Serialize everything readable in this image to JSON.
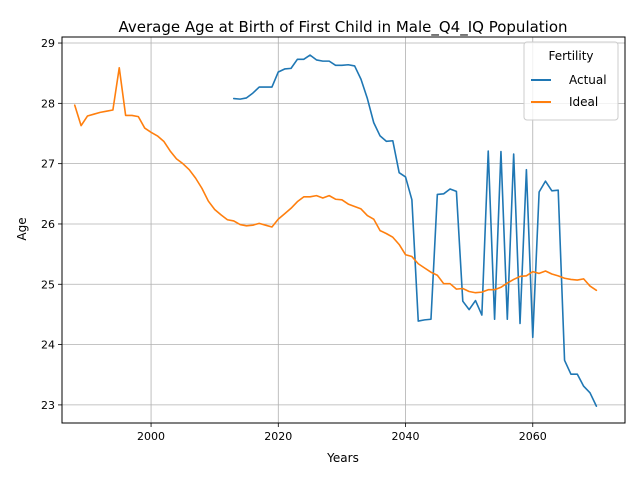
{
  "chart_data": {
    "type": "line",
    "title": "Average Age at Birth of First Child in Male_Q4_IQ Population",
    "xlabel": "Years",
    "ylabel": "Age",
    "xlim": [
      1986,
      2074.5
    ],
    "ylim": [
      22.7,
      29.1
    ],
    "xticks": [
      2000,
      2020,
      2040,
      2060
    ],
    "yticks": [
      23,
      24,
      25,
      26,
      27,
      28,
      29
    ],
    "grid": true,
    "legend": {
      "title": "Fertility",
      "position": "top-right"
    },
    "series": [
      {
        "name": "Actual",
        "color": "#1f77b4",
        "points": [
          [
            2013,
            28.08
          ],
          [
            2014,
            28.07
          ],
          [
            2015,
            28.09
          ],
          [
            2016,
            28.17
          ],
          [
            2017,
            28.27
          ],
          [
            2018,
            28.27
          ],
          [
            2019,
            28.27
          ],
          [
            2020,
            28.52
          ],
          [
            2021,
            28.57
          ],
          [
            2022,
            28.58
          ],
          [
            2023,
            28.73
          ],
          [
            2024,
            28.73
          ],
          [
            2025,
            28.8
          ],
          [
            2026,
            28.72
          ],
          [
            2027,
            28.7
          ],
          [
            2028,
            28.7
          ],
          [
            2029,
            28.63
          ],
          [
            2030,
            28.63
          ],
          [
            2031,
            28.64
          ],
          [
            2032,
            28.62
          ],
          [
            2033,
            28.4
          ],
          [
            2034,
            28.08
          ],
          [
            2035,
            27.68
          ],
          [
            2036,
            27.46
          ],
          [
            2037,
            27.37
          ],
          [
            2038,
            27.38
          ],
          [
            2039,
            26.85
          ],
          [
            2040,
            26.78
          ],
          [
            2041,
            26.4
          ],
          [
            2042,
            24.39
          ],
          [
            2043,
            24.41
          ],
          [
            2044,
            24.42
          ],
          [
            2045,
            26.49
          ],
          [
            2046,
            26.5
          ],
          [
            2047,
            26.58
          ],
          [
            2048,
            26.54
          ],
          [
            2049,
            24.72
          ],
          [
            2050,
            24.58
          ],
          [
            2051,
            24.73
          ],
          [
            2052,
            24.49
          ],
          [
            2053,
            27.21
          ],
          [
            2054,
            24.42
          ],
          [
            2055,
            27.2
          ],
          [
            2056,
            24.42
          ],
          [
            2057,
            27.16
          ],
          [
            2058,
            24.35
          ],
          [
            2059,
            26.9
          ],
          [
            2060,
            24.12
          ],
          [
            2061,
            26.53
          ],
          [
            2062,
            26.71
          ],
          [
            2063,
            26.55
          ],
          [
            2064,
            26.56
          ],
          [
            2065,
            23.74
          ],
          [
            2066,
            23.51
          ],
          [
            2067,
            23.51
          ],
          [
            2068,
            23.31
          ],
          [
            2069,
            23.2
          ],
          [
            2070,
            22.98
          ]
        ]
      },
      {
        "name": "Ideal",
        "color": "#ff7f0e",
        "points": [
          [
            1988,
            27.97
          ],
          [
            1989,
            27.63
          ],
          [
            1990,
            27.79
          ],
          [
            1991,
            27.82
          ],
          [
            1992,
            27.85
          ],
          [
            1993,
            27.87
          ],
          [
            1994,
            27.89
          ],
          [
            1995,
            28.59
          ],
          [
            1996,
            27.8
          ],
          [
            1997,
            27.8
          ],
          [
            1998,
            27.78
          ],
          [
            1999,
            27.59
          ],
          [
            2000,
            27.52
          ],
          [
            2001,
            27.46
          ],
          [
            2002,
            27.37
          ],
          [
            2003,
            27.21
          ],
          [
            2004,
            27.08
          ],
          [
            2005,
            27.0
          ],
          [
            2006,
            26.9
          ],
          [
            2007,
            26.76
          ],
          [
            2008,
            26.59
          ],
          [
            2009,
            26.38
          ],
          [
            2010,
            26.24
          ],
          [
            2011,
            26.15
          ],
          [
            2012,
            26.07
          ],
          [
            2013,
            26.05
          ],
          [
            2014,
            25.99
          ],
          [
            2015,
            25.97
          ],
          [
            2016,
            25.98
          ],
          [
            2017,
            26.01
          ],
          [
            2018,
            25.98
          ],
          [
            2019,
            25.95
          ],
          [
            2020,
            26.08
          ],
          [
            2021,
            26.17
          ],
          [
            2022,
            26.26
          ],
          [
            2023,
            26.37
          ],
          [
            2024,
            26.45
          ],
          [
            2025,
            26.45
          ],
          [
            2026,
            26.47
          ],
          [
            2027,
            26.43
          ],
          [
            2028,
            26.47
          ],
          [
            2029,
            26.41
          ],
          [
            2030,
            26.4
          ],
          [
            2031,
            26.33
          ],
          [
            2032,
            26.29
          ],
          [
            2033,
            26.25
          ],
          [
            2034,
            26.14
          ],
          [
            2035,
            26.08
          ],
          [
            2036,
            25.89
          ],
          [
            2037,
            25.84
          ],
          [
            2038,
            25.78
          ],
          [
            2039,
            25.66
          ],
          [
            2040,
            25.49
          ],
          [
            2041,
            25.46
          ],
          [
            2042,
            25.34
          ],
          [
            2043,
            25.27
          ],
          [
            2044,
            25.2
          ],
          [
            2045,
            25.15
          ],
          [
            2046,
            25.01
          ],
          [
            2047,
            25.01
          ],
          [
            2048,
            24.92
          ],
          [
            2049,
            24.93
          ],
          [
            2050,
            24.88
          ],
          [
            2051,
            24.86
          ],
          [
            2052,
            24.87
          ],
          [
            2053,
            24.91
          ],
          [
            2054,
            24.91
          ],
          [
            2055,
            24.95
          ],
          [
            2056,
            25.02
          ],
          [
            2057,
            25.08
          ],
          [
            2058,
            25.13
          ],
          [
            2059,
            25.14
          ],
          [
            2060,
            25.21
          ],
          [
            2061,
            25.18
          ],
          [
            2062,
            25.22
          ],
          [
            2063,
            25.17
          ],
          [
            2064,
            25.14
          ],
          [
            2065,
            25.1
          ],
          [
            2066,
            25.08
          ],
          [
            2067,
            25.07
          ],
          [
            2068,
            25.09
          ],
          [
            2069,
            24.97
          ],
          [
            2070,
            24.9
          ]
        ]
      }
    ]
  }
}
